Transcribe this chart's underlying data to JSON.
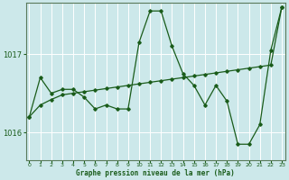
{
  "xlabel": "Graphe pression niveau de la mer (hPa)",
  "x_ticks": [
    0,
    1,
    2,
    3,
    4,
    5,
    6,
    7,
    8,
    9,
    10,
    11,
    12,
    13,
    14,
    15,
    16,
    17,
    18,
    19,
    20,
    21,
    22,
    23
  ],
  "y_ticks": [
    1016,
    1017
  ],
  "ylim": [
    1015.65,
    1017.65
  ],
  "xlim": [
    -0.3,
    23.3
  ],
  "bg_color": "#cce8ea",
  "grid_color": "#ffffff",
  "line_color": "#1a5c1a",
  "marker": "D",
  "marker_size": 1.8,
  "line_width": 0.9,
  "series1": [
    1016.2,
    1016.7,
    1016.5,
    1016.55,
    1016.55,
    1016.45,
    1016.3,
    1016.35,
    1016.3,
    1016.3,
    1017.15,
    1017.55,
    1017.55,
    1017.1,
    1016.75,
    1016.6,
    1016.35,
    1016.6,
    1016.4,
    1015.85,
    1015.85,
    1016.1,
    1017.05,
    1017.6
  ],
  "series2": [
    1016.2,
    1016.35,
    1016.42,
    1016.48,
    1016.5,
    1016.52,
    1016.54,
    1016.56,
    1016.58,
    1016.6,
    1016.62,
    1016.64,
    1016.66,
    1016.68,
    1016.7,
    1016.72,
    1016.74,
    1016.76,
    1016.78,
    1016.8,
    1016.82,
    1016.84,
    1016.86,
    1017.6
  ],
  "title_color": "#1a5c1a",
  "axis_color": "#5a7a5a",
  "tick_color": "#1a5c1a",
  "font_family": "monospace"
}
